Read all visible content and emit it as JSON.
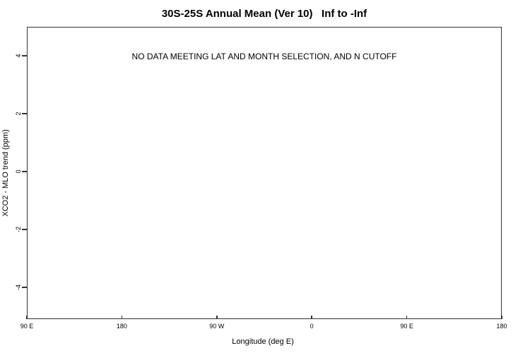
{
  "title": "30S-25S Annual Mean (Ver 10)   Inf to -Inf",
  "message": "NO DATA MEETING LAT AND MONTH SELECTION, AND N CUTOFF",
  "axes": {
    "xlabel": "Longitude (deg E)",
    "ylabel": "XCO2 - MLO trend (ppm)",
    "x_tick_labels": [
      "90 E",
      "180",
      "90 W",
      "0",
      "90 E",
      "180"
    ],
    "y_tick_labels": [
      "4",
      "2",
      "0",
      "-2",
      "-4"
    ]
  },
  "colors": {
    "line": "#333333",
    "text": "#000000",
    "background": "#ffffff"
  },
  "chart_data": {
    "type": "scatter",
    "title": "30S-25S Annual Mean (Ver 10)   Inf to -Inf",
    "xlabel": "Longitude (deg E)",
    "ylabel": "XCO2 - MLO trend (ppm)",
    "x_tick_labels": [
      "90 E",
      "180",
      "90 W",
      "0",
      "90 E",
      "180"
    ],
    "y_ticks": [
      -4,
      -2,
      0,
      2,
      4
    ],
    "ylim": [
      -5,
      5
    ],
    "grid": false,
    "legend": false,
    "series": [],
    "annotations": [
      "NO DATA MEETING LAT AND MONTH SELECTION, AND N CUTOFF"
    ]
  }
}
